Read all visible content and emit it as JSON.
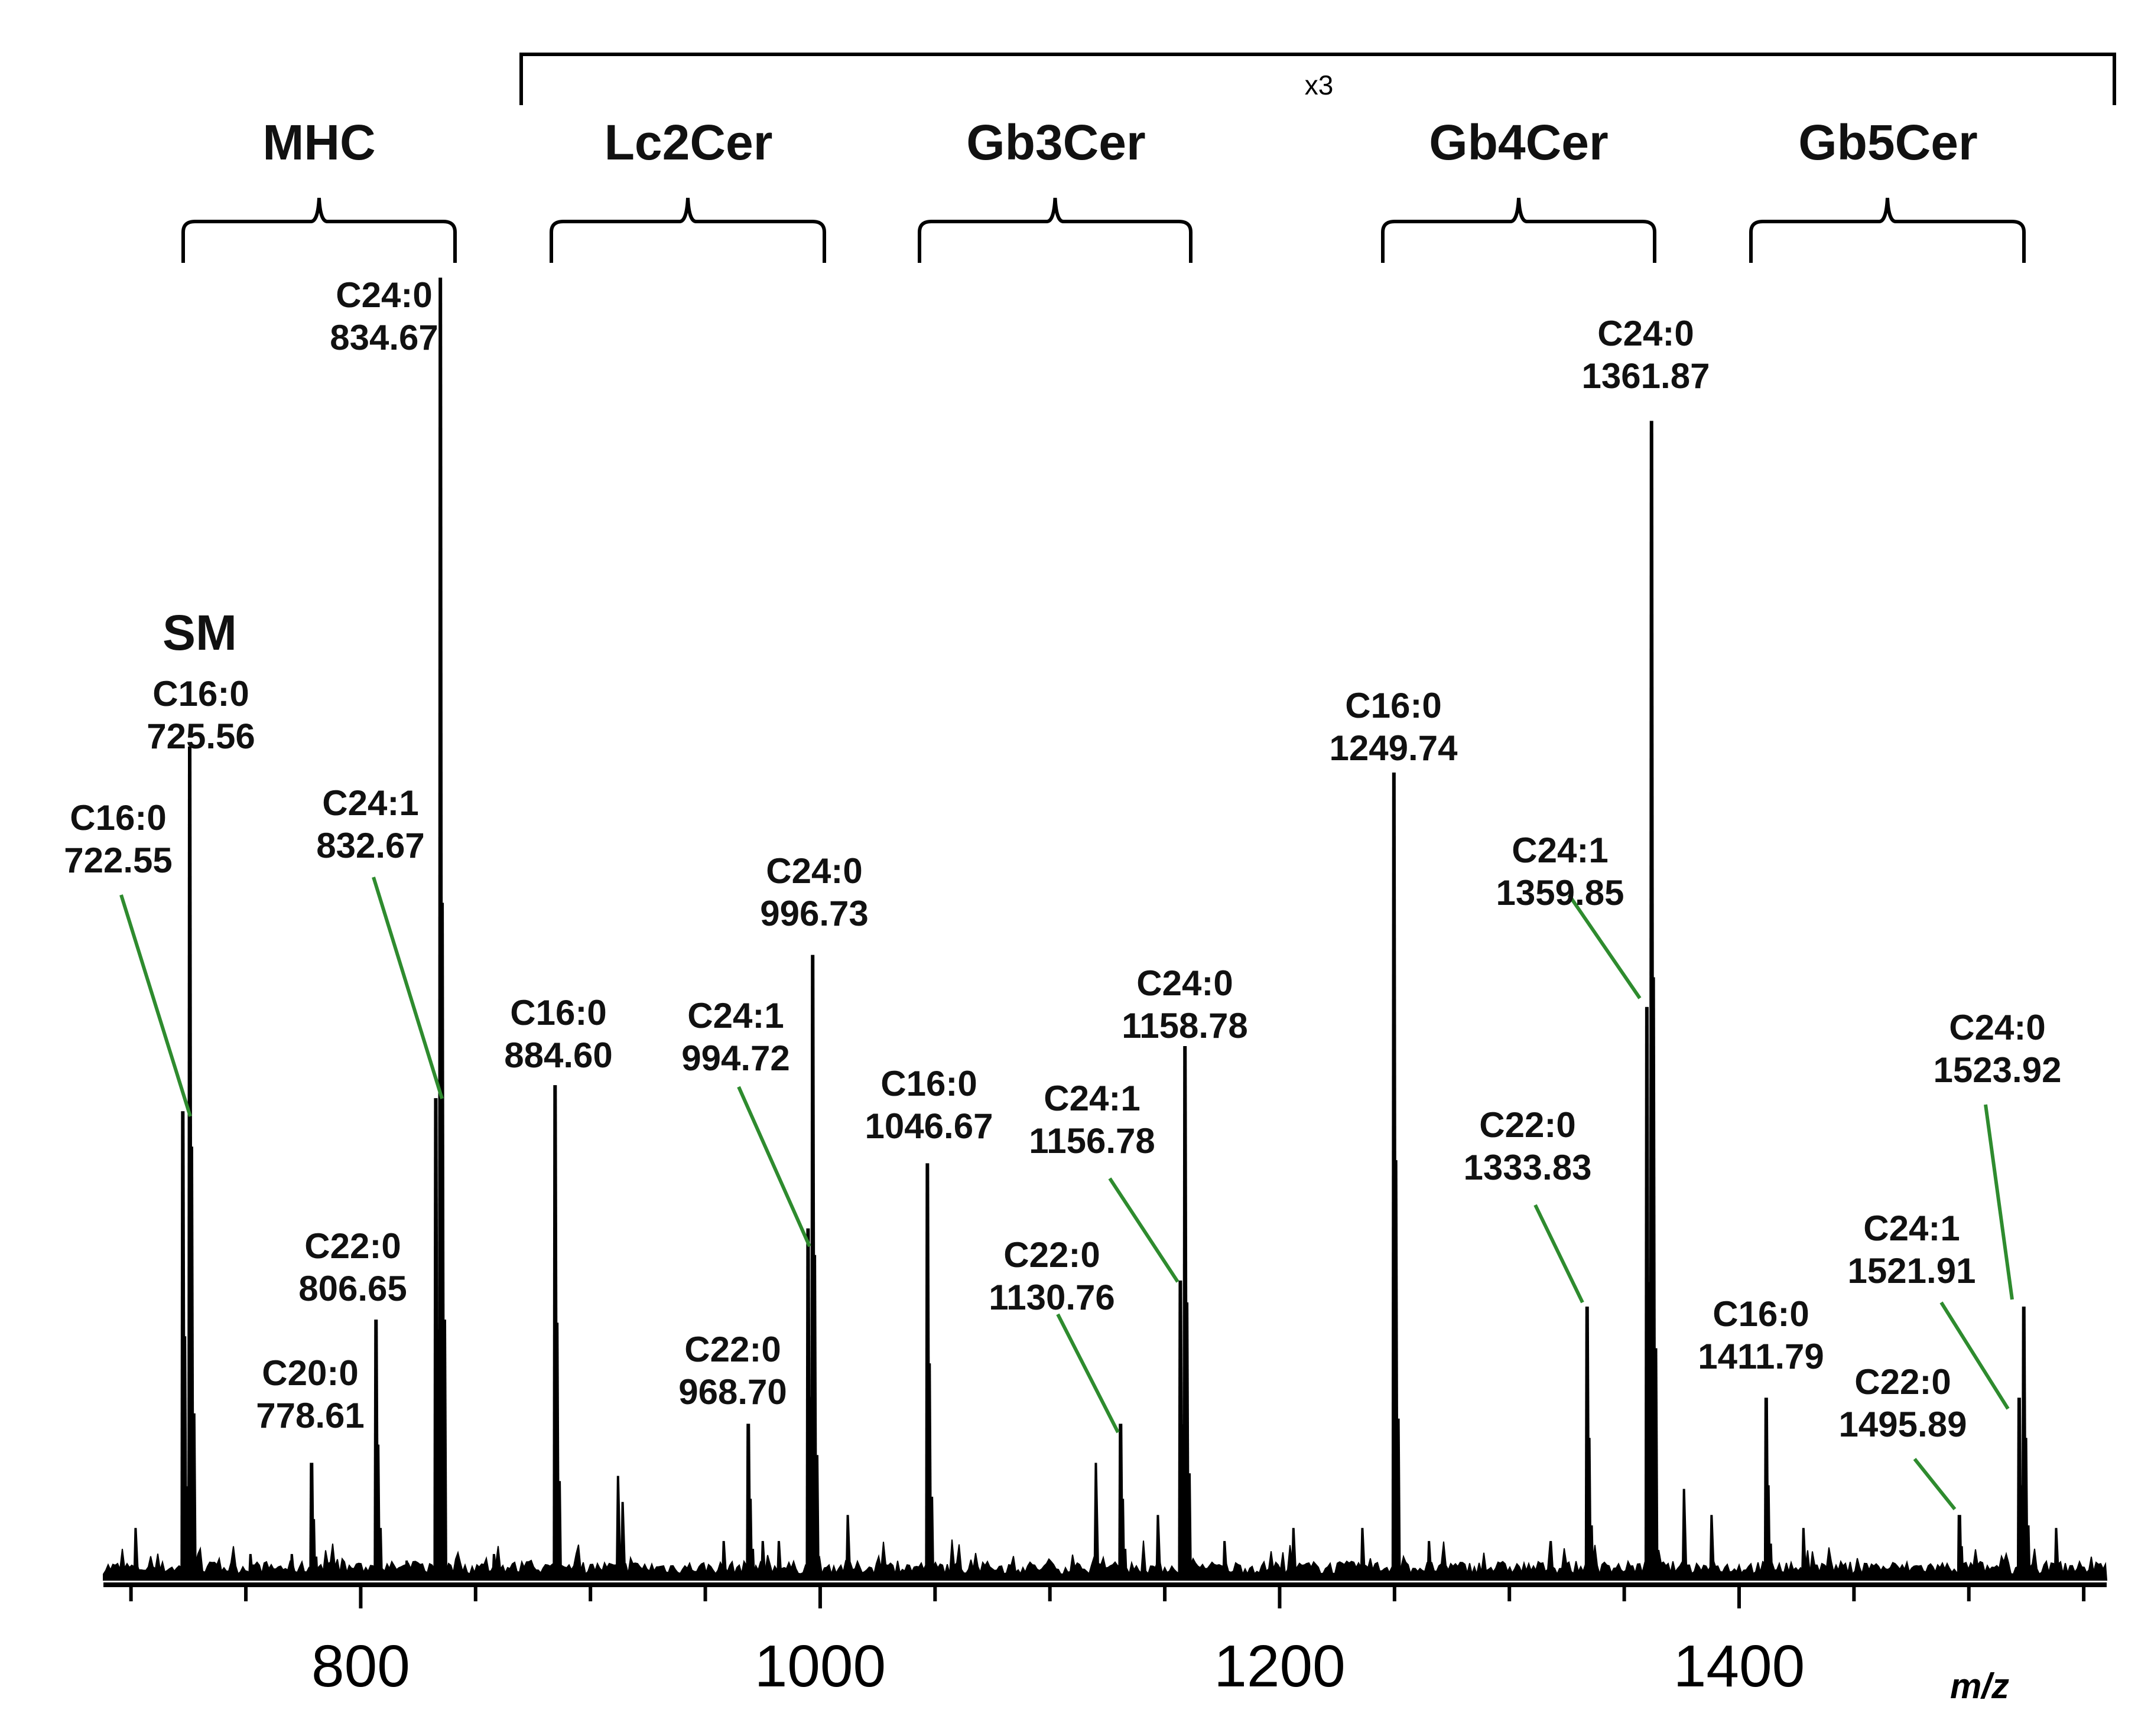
{
  "chart_data": {
    "type": "line",
    "subtype": "mass-spectrum",
    "xlabel": "m/z",
    "ylabel": "",
    "xlim": [
      688,
      1560
    ],
    "ylim": [
      0,
      100
    ],
    "x_ticks": [
      800,
      1000,
      1200,
      1400
    ],
    "tick_labels": [
      "800",
      "1000",
      "1200",
      "1400"
    ],
    "scale_note": "x3",
    "groups": [
      {
        "name": "SM",
        "range": [
          720,
          728
        ]
      },
      {
        "name": "MHC",
        "range": [
          730,
          850
        ]
      },
      {
        "name": "Lc2Cer",
        "range": [
          880,
          1000
        ]
      },
      {
        "name": "Gb3Cer",
        "range": [
          1042,
          1160
        ]
      },
      {
        "name": "Gb4Cer",
        "range": [
          1245,
          1364
        ]
      },
      {
        "name": "Gb5Cer",
        "range": [
          1406,
          1525
        ]
      }
    ],
    "peaks": [
      {
        "mz": 725.56,
        "label": "C16:0",
        "mz_text": "725.56",
        "intensity": 64
      },
      {
        "mz": 722.55,
        "label": "C16:0",
        "mz_text": "722.55",
        "intensity": 36
      },
      {
        "mz": 778.61,
        "label": "C20:0",
        "mz_text": "778.61",
        "intensity": 9
      },
      {
        "mz": 806.65,
        "label": "C22:0",
        "mz_text": "806.65",
        "intensity": 20
      },
      {
        "mz": 832.67,
        "label": "C24:1",
        "mz_text": "832.67",
        "intensity": 37
      },
      {
        "mz": 834.67,
        "label": "C24:0",
        "mz_text": "834.67",
        "intensity": 100
      },
      {
        "mz": 884.6,
        "label": "C16:0",
        "mz_text": "884.60",
        "intensity": 38
      },
      {
        "mz": 968.7,
        "label": "C22:0",
        "mz_text": "968.70",
        "intensity": 12
      },
      {
        "mz": 994.72,
        "label": "C24:1",
        "mz_text": "994.72",
        "intensity": 27
      },
      {
        "mz": 996.73,
        "label": "C24:0",
        "mz_text": "996.73",
        "intensity": 48
      },
      {
        "mz": 1046.67,
        "label": "C16:0",
        "mz_text": "1046.67",
        "intensity": 32
      },
      {
        "mz": 1130.76,
        "label": "C22:0",
        "mz_text": "1130.76",
        "intensity": 12
      },
      {
        "mz": 1156.78,
        "label": "C24:1",
        "mz_text": "1156.78",
        "intensity": 23
      },
      {
        "mz": 1158.78,
        "label": "C24:0",
        "mz_text": "1158.78",
        "intensity": 41
      },
      {
        "mz": 1249.74,
        "label": "C16:0",
        "mz_text": "1249.74",
        "intensity": 62
      },
      {
        "mz": 1333.83,
        "label": "C22:0",
        "mz_text": "1333.83",
        "intensity": 21
      },
      {
        "mz": 1359.85,
        "label": "C24:1",
        "mz_text": "1359.85",
        "intensity": 44
      },
      {
        "mz": 1361.87,
        "label": "C24:0",
        "mz_text": "1361.87",
        "intensity": 89
      },
      {
        "mz": 1411.79,
        "label": "C16:0",
        "mz_text": "1411.79",
        "intensity": 14
      },
      {
        "mz": 1495.89,
        "label": "C22:0",
        "mz_text": "1495.89",
        "intensity": 5
      },
      {
        "mz": 1521.91,
        "label": "C24:1",
        "mz_text": "1521.91",
        "intensity": 14
      },
      {
        "mz": 1523.92,
        "label": "C24:0",
        "mz_text": "1523.92",
        "intensity": 21
      }
    ],
    "minor_peaks": [
      {
        "mz": 702,
        "intensity": 4
      },
      {
        "mz": 752,
        "intensity": 2
      },
      {
        "mz": 770,
        "intensity": 2
      },
      {
        "mz": 820,
        "intensity": 1.5
      },
      {
        "mz": 858,
        "intensity": 2
      },
      {
        "mz": 912,
        "intensity": 8
      },
      {
        "mz": 914,
        "intensity": 6
      },
      {
        "mz": 958,
        "intensity": 3
      },
      {
        "mz": 975,
        "intensity": 3
      },
      {
        "mz": 982,
        "intensity": 3
      },
      {
        "mz": 1012,
        "intensity": 5
      },
      {
        "mz": 1120,
        "intensity": 9
      },
      {
        "mz": 1147,
        "intensity": 5
      },
      {
        "mz": 1176,
        "intensity": 3
      },
      {
        "mz": 1206,
        "intensity": 4
      },
      {
        "mz": 1236,
        "intensity": 4
      },
      {
        "mz": 1265,
        "intensity": 3
      },
      {
        "mz": 1318,
        "intensity": 3
      },
      {
        "mz": 1376,
        "intensity": 7
      },
      {
        "mz": 1388,
        "intensity": 5
      },
      {
        "mz": 1428,
        "intensity": 4
      },
      {
        "mz": 1538,
        "intensity": 4
      }
    ]
  }
}
